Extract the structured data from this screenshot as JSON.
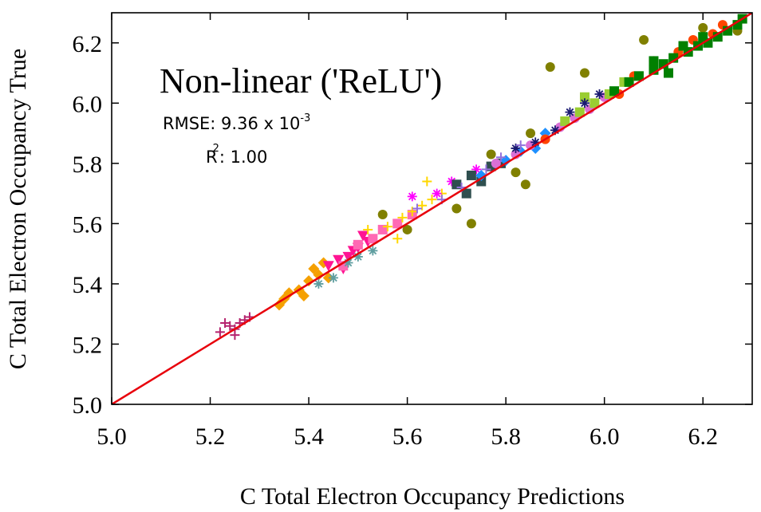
{
  "chart_data": {
    "type": "scatter",
    "title": "Non-linear ('ReLU')",
    "xlabel": "C Total Electron Occupancy Predictions",
    "ylabel": "C Total Electron Occupancy True",
    "xlim": [
      5.0,
      6.3
    ],
    "ylim": [
      5.0,
      6.3
    ],
    "xticks": [
      "5.0",
      "5.2",
      "5.4",
      "5.6",
      "5.8",
      "6.0",
      "6.2"
    ],
    "yticks": [
      "5.0",
      "5.2",
      "5.4",
      "5.6",
      "5.8",
      "6.0",
      "6.2"
    ],
    "annotations": {
      "rmse_label": "RMSE: 9.36 x 10",
      "rmse_exponent": "-3",
      "r2_base": "R",
      "r2_exponent": "2",
      "r2_value": ": 1.00"
    },
    "reference_line": {
      "x": [
        5.0,
        6.3
      ],
      "y": [
        5.0,
        6.3
      ],
      "color": "#e8000b"
    },
    "series": [
      {
        "name": "s1",
        "marker": "plus",
        "color": "#b5236e",
        "x": [
          5.22,
          5.24,
          5.25,
          5.26,
          5.27,
          5.28,
          5.25,
          5.23
        ],
        "y": [
          5.24,
          5.26,
          5.23,
          5.27,
          5.28,
          5.29,
          5.25,
          5.27
        ]
      },
      {
        "name": "s2",
        "marker": "diamond",
        "color": "#f5a000",
        "x": [
          5.34,
          5.36,
          5.38,
          5.4,
          5.42,
          5.44,
          5.39,
          5.41,
          5.35,
          5.43
        ],
        "y": [
          5.33,
          5.37,
          5.38,
          5.41,
          5.43,
          5.42,
          5.36,
          5.45,
          5.35,
          5.47
        ]
      },
      {
        "name": "s3",
        "marker": "triangle",
        "color": "#ff1493",
        "x": [
          5.44,
          5.46,
          5.48,
          5.5,
          5.52,
          5.47,
          5.49,
          5.51
        ],
        "y": [
          5.46,
          5.48,
          5.49,
          5.52,
          5.54,
          5.45,
          5.51,
          5.56
        ]
      },
      {
        "name": "s4",
        "marker": "square",
        "color": "#ff69b4",
        "x": [
          5.47,
          5.5,
          5.53,
          5.55,
          5.58,
          5.61
        ],
        "y": [
          5.46,
          5.53,
          5.55,
          5.58,
          5.6,
          5.63
        ]
      },
      {
        "name": "s5",
        "marker": "star",
        "color": "#5f9ea0",
        "x": [
          5.42,
          5.45,
          5.48,
          5.5,
          5.53
        ],
        "y": [
          5.4,
          5.42,
          5.47,
          5.49,
          5.51
        ]
      },
      {
        "name": "s6",
        "marker": "plus",
        "color": "#ffd700",
        "x": [
          5.52,
          5.56,
          5.59,
          5.61,
          5.63,
          5.65,
          5.67,
          5.64,
          5.58
        ],
        "y": [
          5.58,
          5.59,
          5.62,
          5.64,
          5.66,
          5.68,
          5.7,
          5.74,
          5.55
        ]
      },
      {
        "name": "s7",
        "marker": "star",
        "color": "#ff00ff",
        "x": [
          5.61,
          5.66,
          5.69,
          5.74
        ],
        "y": [
          5.69,
          5.7,
          5.74,
          5.78
        ]
      },
      {
        "name": "s8",
        "marker": "circle",
        "color": "#808000",
        "x": [
          5.55,
          5.6,
          5.7,
          5.73,
          5.77,
          5.82,
          5.84,
          5.85,
          5.89,
          5.96,
          6.08,
          6.2,
          6.27
        ],
        "y": [
          5.63,
          5.58,
          5.65,
          5.6,
          5.83,
          5.77,
          5.73,
          5.9,
          6.12,
          6.1,
          6.21,
          6.25,
          6.24
        ]
      },
      {
        "name": "s9",
        "marker": "square",
        "color": "#2f4f4f",
        "x": [
          5.7,
          5.73,
          5.75,
          5.77,
          5.79,
          5.72
        ],
        "y": [
          5.73,
          5.76,
          5.74,
          5.79,
          5.8,
          5.7
        ]
      },
      {
        "name": "s10",
        "marker": "diamond",
        "color": "#1e90ff",
        "x": [
          5.8,
          5.83,
          5.86,
          5.88,
          5.75
        ],
        "y": [
          5.81,
          5.84,
          5.85,
          5.9,
          5.76
        ]
      },
      {
        "name": "s11",
        "marker": "circle",
        "color": "#da70d6",
        "x": [
          5.78,
          5.82,
          5.85,
          5.88,
          5.91,
          5.94,
          5.97,
          6.0
        ],
        "y": [
          5.8,
          5.83,
          5.86,
          5.88,
          5.92,
          5.95,
          5.98,
          6.02
        ]
      },
      {
        "name": "s12",
        "marker": "square",
        "color": "#9acd32",
        "x": [
          5.92,
          5.95,
          5.98,
          6.01,
          6.04,
          5.96
        ],
        "y": [
          5.94,
          5.97,
          6.0,
          6.03,
          6.07,
          6.02
        ]
      },
      {
        "name": "s13",
        "marker": "circle",
        "color": "#ff4500",
        "x": [
          5.88,
          6.03,
          6.06,
          6.1,
          6.15,
          6.18,
          6.22,
          6.24
        ],
        "y": [
          5.88,
          6.03,
          6.09,
          6.14,
          6.17,
          6.21,
          6.23,
          6.26
        ]
      },
      {
        "name": "s14",
        "marker": "square",
        "color": "#008000",
        "x": [
          6.02,
          6.05,
          6.07,
          6.1,
          6.12,
          6.14,
          6.17,
          6.19,
          6.21,
          6.23,
          6.25,
          6.27,
          6.28,
          6.1,
          6.13,
          6.16,
          6.2
        ],
        "y": [
          6.04,
          6.07,
          6.09,
          6.11,
          6.13,
          6.15,
          6.17,
          6.19,
          6.2,
          6.22,
          6.24,
          6.26,
          6.28,
          6.14,
          6.1,
          6.19,
          6.22
        ]
      },
      {
        "name": "s15",
        "marker": "star",
        "color": "#191970",
        "x": [
          5.82,
          5.86,
          5.9,
          5.93,
          5.96,
          5.99
        ],
        "y": [
          5.85,
          5.87,
          5.91,
          5.97,
          6.0,
          6.03
        ]
      },
      {
        "name": "s16",
        "marker": "plus",
        "color": "#9370db",
        "x": [
          5.62,
          5.67,
          5.71,
          5.76,
          5.79,
          5.83
        ],
        "y": [
          5.65,
          5.68,
          5.72,
          5.78,
          5.82,
          5.86
        ]
      }
    ]
  }
}
